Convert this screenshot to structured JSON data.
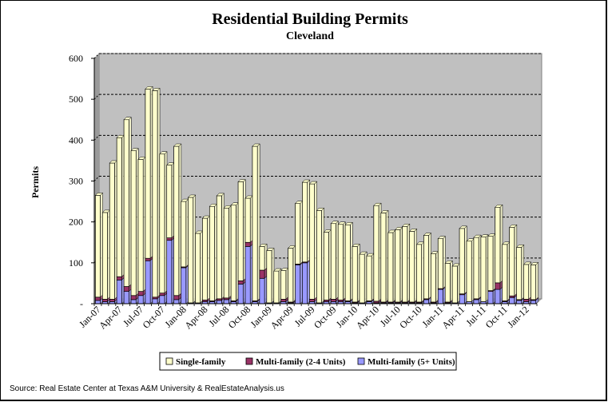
{
  "chart_data": {
    "type": "bar",
    "stacked": true,
    "title": "Residential Building Permits",
    "subtitle": "Cleveland",
    "ylabel": "Permits",
    "xlabel": "",
    "ylim": [
      0,
      600
    ],
    "yticks": [
      0,
      100,
      200,
      300,
      400,
      500,
      600
    ],
    "ytick_labels": [
      "-",
      "100",
      "200",
      "300",
      "400",
      "500",
      "600"
    ],
    "grid": true,
    "legend_position": "bottom",
    "source": "Source: Real Estate Center at Texas A&M University & RealEstateAnalysis.us",
    "tick_labels": [
      {
        "index": 0,
        "label": "Jan-07"
      },
      {
        "index": 3,
        "label": "Apr-07"
      },
      {
        "index": 6,
        "label": "Jul-07"
      },
      {
        "index": 9,
        "label": "Oct-07"
      },
      {
        "index": 12,
        "label": "Jan-08"
      },
      {
        "index": 15,
        "label": "Apr-08"
      },
      {
        "index": 18,
        "label": "Jul-08"
      },
      {
        "index": 21,
        "label": "Oct-08"
      },
      {
        "index": 24,
        "label": "Jan-09"
      },
      {
        "index": 27,
        "label": "Apr-09"
      },
      {
        "index": 30,
        "label": "Jul-09"
      },
      {
        "index": 33,
        "label": "Oct-09"
      },
      {
        "index": 36,
        "label": "Jan-10"
      },
      {
        "index": 39,
        "label": "Apr-10"
      },
      {
        "index": 42,
        "label": "Jul-10"
      },
      {
        "index": 45,
        "label": "Oct-10"
      },
      {
        "index": 48,
        "label": "Jan-11"
      },
      {
        "index": 51,
        "label": "Apr-11"
      },
      {
        "index": 54,
        "label": "Jul-11"
      },
      {
        "index": 57,
        "label": "Oct-11"
      },
      {
        "index": 60,
        "label": "Jan-12"
      }
    ],
    "categories": [
      "Jan-07",
      "Feb-07",
      "Mar-07",
      "Apr-07",
      "May-07",
      "Jun-07",
      "Jul-07",
      "Aug-07",
      "Sep-07",
      "Oct-07",
      "Nov-07",
      "Dec-07",
      "Jan-08",
      "Feb-08",
      "Mar-08",
      "Apr-08",
      "May-08",
      "Jun-08",
      "Jul-08",
      "Aug-08",
      "Sep-08",
      "Oct-08",
      "Nov-08",
      "Dec-08",
      "Jan-09",
      "Feb-09",
      "Mar-09",
      "Apr-09",
      "May-09",
      "Jun-09",
      "Jul-09",
      "Aug-09",
      "Sep-09",
      "Oct-09",
      "Nov-09",
      "Dec-09",
      "Jan-10",
      "Feb-10",
      "Mar-10",
      "Apr-10",
      "May-10",
      "Jun-10",
      "Jul-10",
      "Aug-10",
      "Sep-10",
      "Oct-10",
      "Nov-10",
      "Dec-10",
      "Jan-11",
      "Feb-11",
      "Mar-11",
      "Apr-11",
      "May-11",
      "Jun-11",
      "Jul-11",
      "Aug-11",
      "Sep-11",
      "Oct-11",
      "Nov-11",
      "Dec-11",
      "Jan-12",
      "Feb-12"
    ],
    "series": [
      {
        "name": "Multi-family (5+ Units)",
        "color": "#9999ff",
        "values": [
          8,
          5,
          5,
          58,
          30,
          10,
          20,
          105,
          12,
          20,
          155,
          10,
          88,
          2,
          2,
          5,
          5,
          8,
          10,
          5,
          48,
          140,
          5,
          62,
          2,
          2,
          5,
          2,
          95,
          100,
          5,
          2,
          5,
          5,
          5,
          5,
          2,
          2,
          5,
          2,
          2,
          2,
          2,
          2,
          2,
          2,
          10,
          2,
          35,
          2,
          2,
          22,
          5,
          10,
          5,
          30,
          35,
          5,
          15,
          8,
          5,
          8
        ]
      },
      {
        "name": "Multi-family (2-4 Units)",
        "color": "#993366",
        "values": [
          8,
          6,
          6,
          8,
          12,
          10,
          10,
          6,
          4,
          6,
          6,
          10,
          2,
          0,
          0,
          4,
          2,
          4,
          4,
          2,
          8,
          10,
          2,
          20,
          0,
          0,
          6,
          2,
          2,
          2,
          6,
          0,
          4,
          6,
          4,
          2,
          2,
          0,
          2,
          4,
          2,
          2,
          2,
          2,
          2,
          2,
          2,
          2,
          2,
          2,
          0,
          2,
          0,
          2,
          0,
          2,
          16,
          2,
          4,
          2,
          6,
          2
        ]
      },
      {
        "name": "Single-family",
        "color": "#ffffcc",
        "values": [
          249,
          212,
          333,
          340,
          408,
          354,
          323,
          414,
          505,
          340,
          178,
          365,
          160,
          258,
          170,
          200,
          231,
          252,
          220,
          234,
          242,
          108,
          378,
          58,
          128,
          78,
          70,
          132,
          148,
          195,
          282,
          226,
          166,
          185,
          185,
          186,
          136,
          119,
          110,
          234,
          218,
          170,
          177,
          185,
          173,
          141,
          155,
          118,
          122,
          95,
          90,
          160,
          148,
          150,
          158,
          133,
          185,
          138,
          168,
          128,
          85,
          85
        ]
      }
    ]
  }
}
